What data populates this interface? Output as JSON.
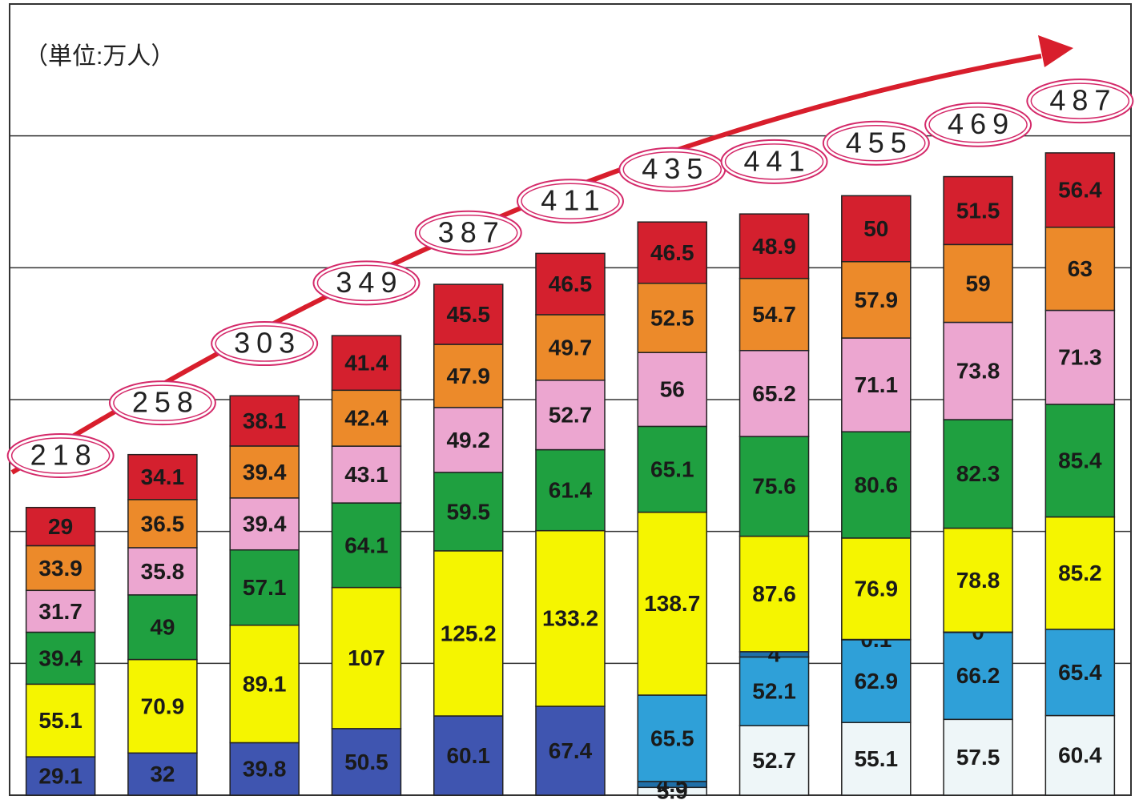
{
  "chart_data": {
    "type": "bar",
    "stacked": true,
    "subtitle": "（単位:万人）",
    "ylim": [
      0,
      600
    ],
    "yticks": [
      0,
      100,
      200,
      300,
      400,
      500
    ],
    "grid": true,
    "totals": [
      218,
      258,
      303,
      349,
      387,
      411,
      435,
      441,
      455,
      469,
      487
    ],
    "series": [
      {
        "color": "#3f55b0",
        "values": [
          29.1,
          32,
          39.8,
          50.5,
          60.1,
          67.4,
          null,
          null,
          null,
          null,
          null
        ]
      },
      {
        "color": "#eef6f8",
        "values": [
          null,
          null,
          null,
          null,
          null,
          null,
          5.9,
          52.7,
          55.1,
          57.5,
          60.4
        ]
      },
      {
        "color": "#1f6fa8",
        "values": [
          null,
          null,
          null,
          null,
          null,
          null,
          4.5,
          null,
          null,
          null,
          null
        ]
      },
      {
        "color": "#2fa0d8",
        "values": [
          null,
          null,
          null,
          null,
          null,
          null,
          65.5,
          52.1,
          62.9,
          66.2,
          65.4
        ]
      },
      {
        "color": "#1f6fa8",
        "values": [
          null,
          null,
          null,
          null,
          null,
          null,
          null,
          4,
          0.1,
          0,
          null
        ]
      },
      {
        "color": "#f5f500",
        "values": [
          55.1,
          70.9,
          89.1,
          107,
          125.2,
          133.2,
          138.7,
          87.6,
          76.9,
          78.8,
          85.2
        ]
      },
      {
        "color": "#1fa040",
        "values": [
          39.4,
          49,
          57.1,
          64.1,
          59.5,
          61.4,
          65.1,
          75.6,
          80.6,
          82.3,
          85.4
        ]
      },
      {
        "color": "#eca6d0",
        "values": [
          31.7,
          35.8,
          39.4,
          43.1,
          49.2,
          52.7,
          56,
          65.2,
          71.1,
          73.8,
          71.3
        ]
      },
      {
        "color": "#ec8a2a",
        "values": [
          33.9,
          36.5,
          39.4,
          42.4,
          47.9,
          49.7,
          52.5,
          54.7,
          57.9,
          59,
          63
        ]
      },
      {
        "color": "#d4202e",
        "values": [
          29,
          34.1,
          38.1,
          41.4,
          45.5,
          46.5,
          46.5,
          48.9,
          50,
          51.5,
          56.4
        ]
      }
    ]
  }
}
